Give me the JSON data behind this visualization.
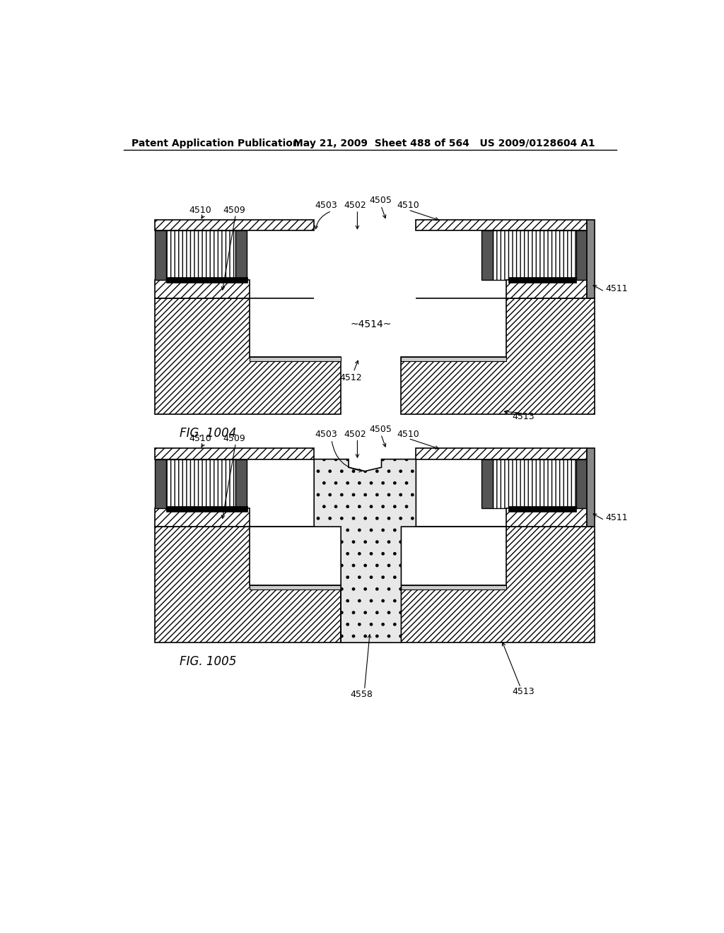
{
  "header_left": "Patent Application Publication",
  "header_right": "May 21, 2009  Sheet 488 of 564   US 2009/0128604 A1",
  "fig1_label": "FIG. 1004",
  "fig2_label": "FIG. 1005",
  "bg_color": "#ffffff"
}
